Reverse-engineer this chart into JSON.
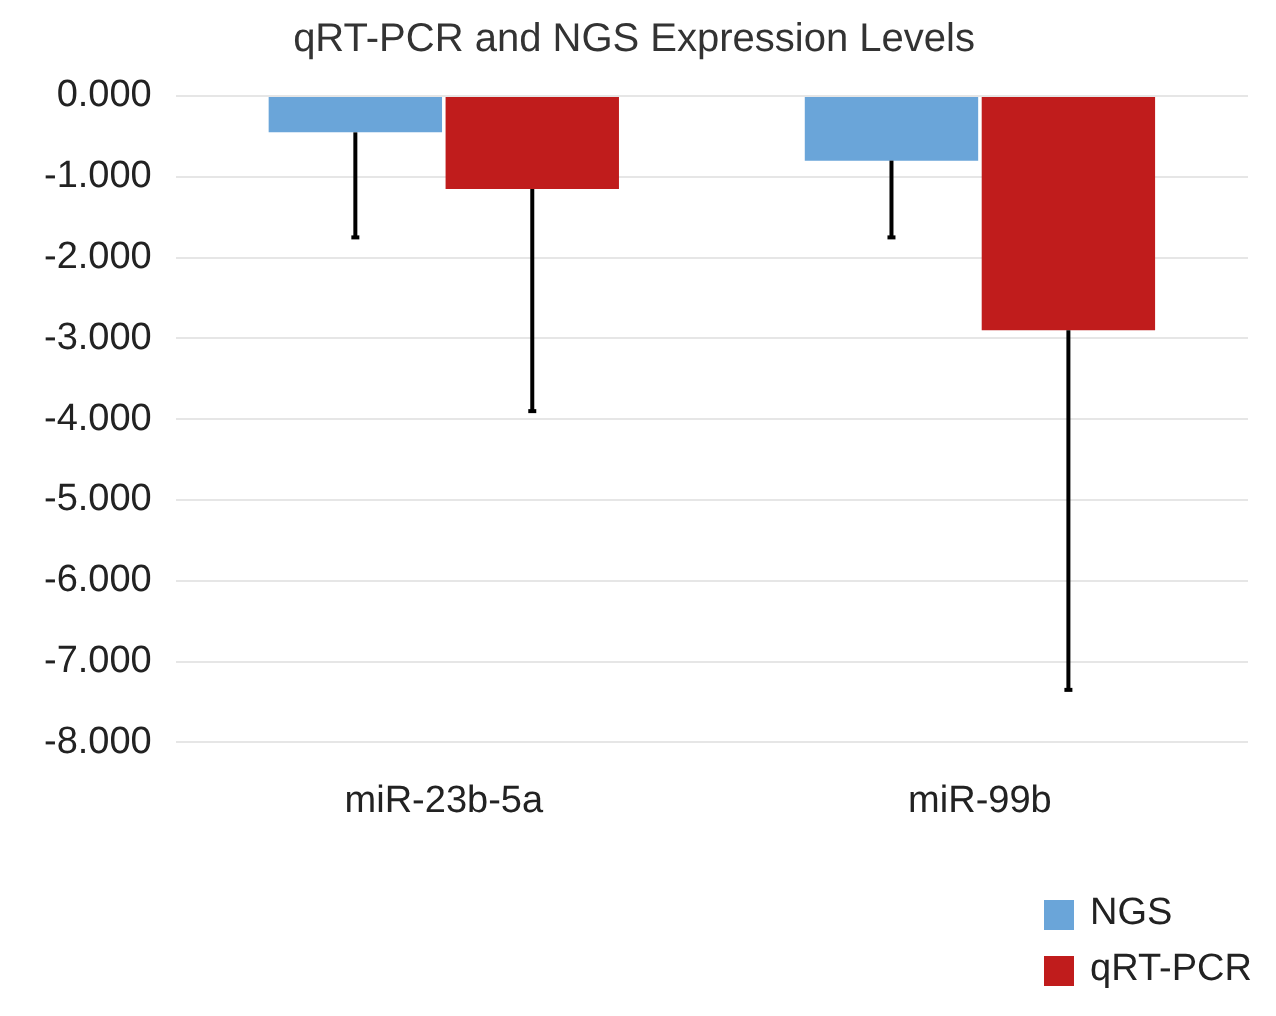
{
  "chart_data": {
    "type": "bar",
    "title": "qRT-PCR and NGS Expression Levels",
    "categories": [
      "miR-23b-5a",
      "miR-99b"
    ],
    "series": [
      {
        "name": "NGS",
        "color": "#6aa5d9",
        "values": [
          -0.45,
          -0.8
        ],
        "errors": [
          [
            -1.75,
            -0.45
          ],
          [
            -1.75,
            -0.8
          ]
        ]
      },
      {
        "name": "qRT-PCR",
        "color": "#c01c1c",
        "values": [
          -1.15,
          -2.9
        ],
        "errors": [
          [
            -3.9,
            -1.15
          ],
          [
            -7.35,
            -2.9
          ]
        ]
      }
    ],
    "ylim": [
      -8,
      0
    ],
    "yticks": [
      {
        "value": 0,
        "label": "0.000"
      },
      {
        "value": -1,
        "label": "-1.000"
      },
      {
        "value": -2,
        "label": "-2.000"
      },
      {
        "value": -3,
        "label": "-3.000"
      },
      {
        "value": -4,
        "label": "-4.000"
      },
      {
        "value": -5,
        "label": "-5.000"
      },
      {
        "value": -6,
        "label": "-6.000"
      },
      {
        "value": -7,
        "label": "-7.000"
      },
      {
        "value": -8,
        "label": "-8.000"
      }
    ],
    "grid": "y",
    "legend": "bottom right"
  }
}
